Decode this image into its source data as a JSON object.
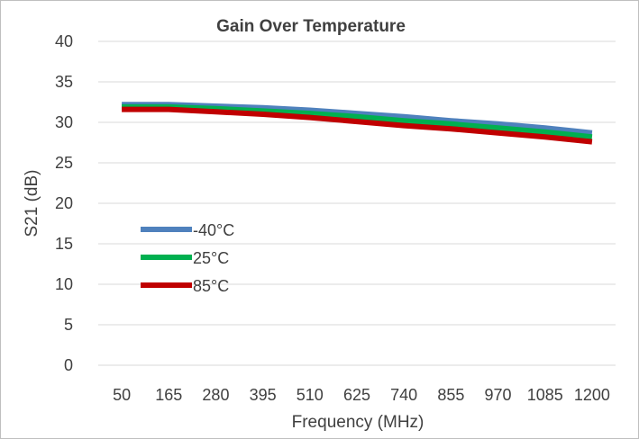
{
  "chart_data": {
    "type": "line",
    "title": "Gain Over Temperature",
    "xlabel": "Frequency (MHz)",
    "ylabel": "S21 (dB)",
    "categories": [
      "50",
      "165",
      "280",
      "395",
      "510",
      "625",
      "740",
      "855",
      "970",
      "1085",
      "1200"
    ],
    "ylim": [
      0,
      40
    ],
    "yticks": [
      0,
      5,
      10,
      15,
      20,
      25,
      30,
      35,
      40
    ],
    "grid": true,
    "legend_position": "left",
    "series": [
      {
        "name": "-40°C",
        "color": "#4f81bd",
        "values": [
          32.2,
          32.2,
          32.0,
          31.8,
          31.5,
          31.1,
          30.7,
          30.2,
          29.8,
          29.3,
          28.7
        ]
      },
      {
        "name": "25°C",
        "color": "#00b050",
        "values": [
          31.9,
          31.9,
          31.7,
          31.4,
          31.1,
          30.7,
          30.2,
          29.8,
          29.3,
          28.8,
          28.2
        ]
      },
      {
        "name": "85°C",
        "color": "#c00000",
        "values": [
          31.6,
          31.6,
          31.3,
          31.0,
          30.6,
          30.1,
          29.6,
          29.2,
          28.7,
          28.2,
          27.6
        ]
      }
    ]
  }
}
